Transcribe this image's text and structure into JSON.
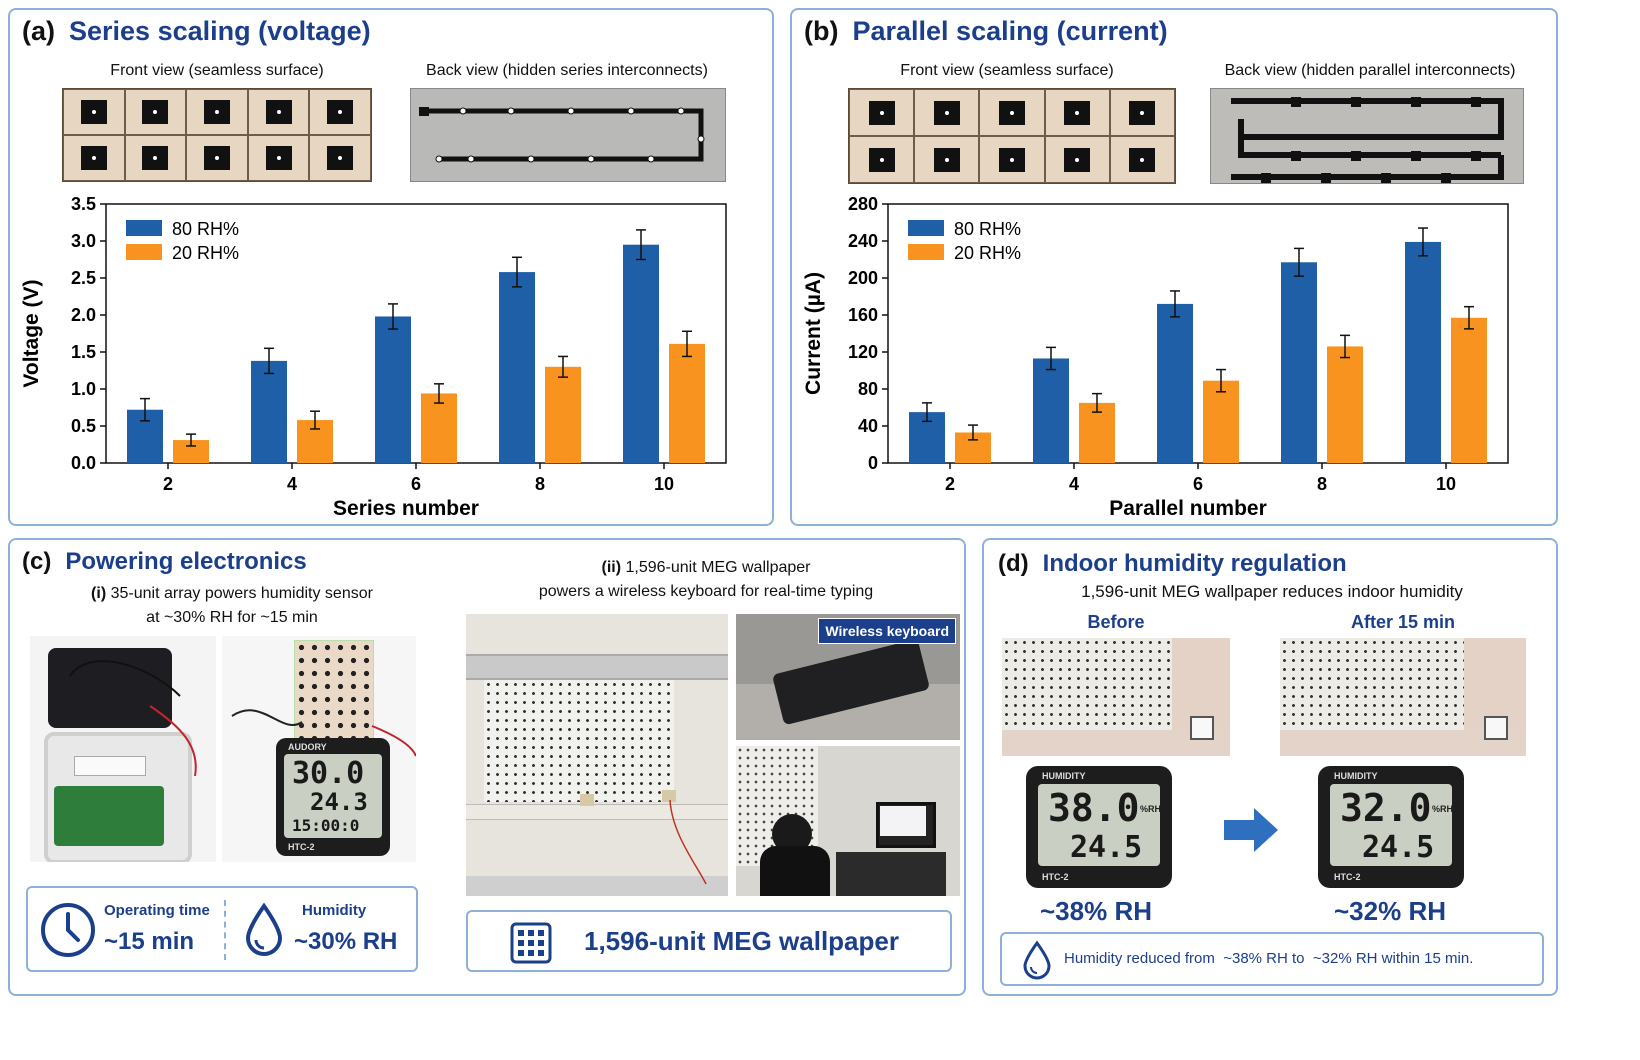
{
  "panel_a": {
    "label": "(a)",
    "title": "Series scaling (voltage)",
    "front_caption": "Front view (seamless surface)",
    "back_caption": "Back view (hidden series interconnects)"
  },
  "panel_b": {
    "label": "(b)",
    "title": "Parallel scaling (current)",
    "front_caption": "Front view (seamless surface)",
    "back_caption": "Back view (hidden parallel interconnects)"
  },
  "panel_c": {
    "label": "(c)",
    "title": "Powering electronics",
    "sub_i_label": "(i)",
    "sub_i_line1": "35-unit array powers humidity sensor",
    "sub_i_line2": "at ~30% RH for ~15 min",
    "sub_ii_label": "(ii)",
    "sub_ii_line1": "1,596-unit MEG wallpaper",
    "sub_ii_line2": "powers a wireless keyboard for real-time typing",
    "meter_brand": "AUDORY",
    "meter_hum": "30.0",
    "meter_temp": "24.3",
    "meter_time": "15:00:0",
    "meter_model": "HTC-2",
    "keyboard_tag": "Wireless keyboard",
    "op_time_label": "Operating time",
    "op_time_value": "~15 min",
    "humidity_label": "Humidity",
    "humidity_value": "~30% RH",
    "wallpaper_label": "1,596-unit MEG wallpaper"
  },
  "panel_d": {
    "label": "(d)",
    "title": "Indoor humidity regulation",
    "subtitle": "1,596-unit MEG wallpaper reduces indoor humidity",
    "before_label": "Before",
    "after_label": "After 15 min",
    "meter_title": "HUMIDITY",
    "meter_unit": "%RH",
    "meter_model": "HTC-2",
    "before_hum": "38.0",
    "before_temp": "24.5",
    "after_hum": "32.0",
    "after_temp": "24.5",
    "before_value": "~38% RH",
    "after_value": "~32% RH",
    "summary_prefix": "Humidity reduced from",
    "summary_from": "~38% RH to",
    "summary_to": "~32% RH within 15 min."
  },
  "colors": {
    "blue": "#1f5fa8",
    "orange": "#f7931e",
    "accent": "#1b3f8b",
    "frame": "#8fb0d6"
  },
  "chart_data": [
    {
      "type": "bar",
      "categories": [
        "2",
        "4",
        "6",
        "8",
        "10"
      ],
      "series": [
        {
          "name": "80 RH%",
          "values": [
            0.72,
            1.38,
            1.98,
            2.58,
            2.95
          ],
          "errors": [
            0.15,
            0.17,
            0.17,
            0.2,
            0.2
          ]
        },
        {
          "name": "20 RH%",
          "values": [
            0.31,
            0.58,
            0.94,
            1.3,
            1.61
          ],
          "errors": [
            0.08,
            0.12,
            0.13,
            0.14,
            0.17
          ]
        }
      ],
      "xlabel": "Series number",
      "ylabel": "Voltage (V)",
      "ylim": [
        0,
        3.5
      ],
      "yticks": [
        "0.0",
        "0.5",
        "1.0",
        "1.5",
        "2.0",
        "2.5",
        "3.0",
        "3.5"
      ],
      "legend_position": "top-left",
      "grid": false
    },
    {
      "type": "bar",
      "categories": [
        "2",
        "4",
        "6",
        "8",
        "10"
      ],
      "series": [
        {
          "name": "80 RH%",
          "values": [
            55,
            113,
            172,
            217,
            239
          ],
          "errors": [
            10,
            12,
            14,
            15,
            15
          ]
        },
        {
          "name": "20 RH%",
          "values": [
            33,
            65,
            89,
            126,
            157
          ],
          "errors": [
            8,
            10,
            12,
            12,
            12
          ]
        }
      ],
      "xlabel": "Parallel number",
      "ylabel": "Current (µA)",
      "ylim": [
        0,
        280
      ],
      "yticks": [
        "0",
        "40",
        "80",
        "120",
        "160",
        "200",
        "240",
        "280"
      ],
      "legend_position": "top-left",
      "grid": false
    }
  ]
}
